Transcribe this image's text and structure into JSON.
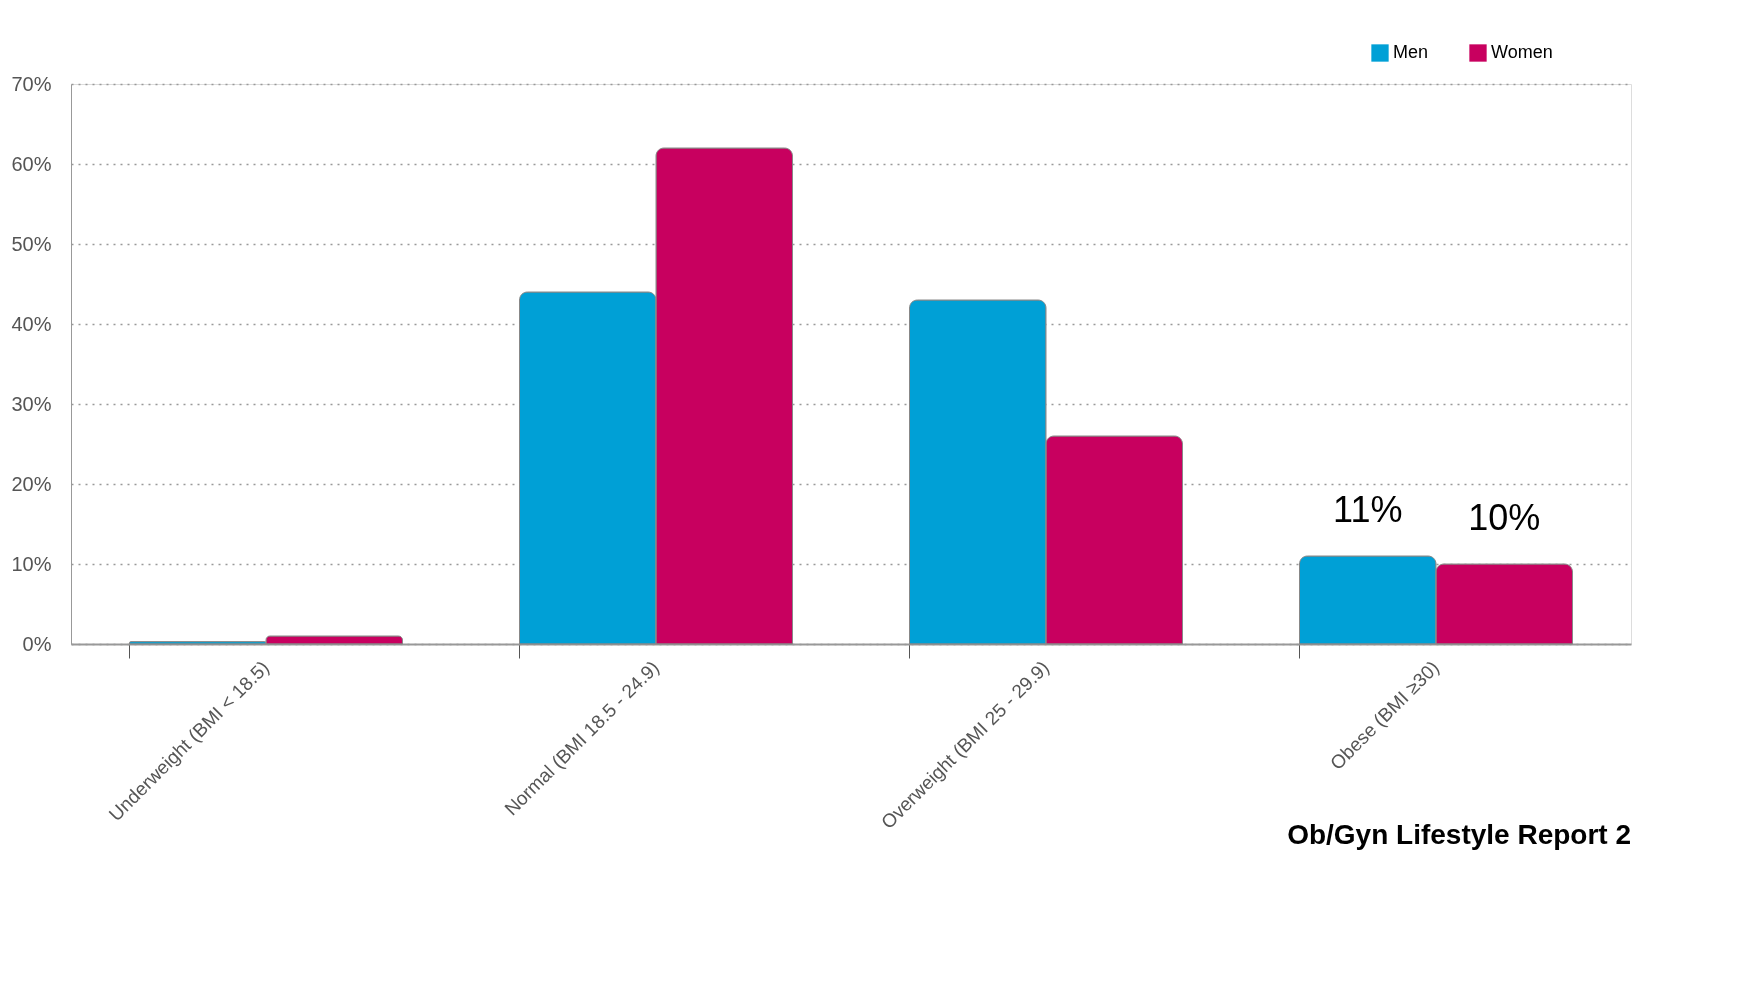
{
  "chart_data": {
    "type": "bar",
    "categories": [
      "Underweight (BMI < 18.5)",
      "Normal (BMI 18.5 - 24.9)",
      "Overweight (BMI 25 - 29.9)",
      "Obese (BMI ≥30)"
    ],
    "series": [
      {
        "name": "Men",
        "color": "#00a0d6",
        "values": [
          0.3,
          44,
          43,
          11
        ],
        "value_labels": [
          null,
          null,
          null,
          "11%"
        ]
      },
      {
        "name": "Women",
        "color": "#c8005f",
        "values": [
          1,
          62,
          26,
          10
        ],
        "value_labels": [
          null,
          null,
          null,
          "10%"
        ]
      }
    ],
    "ylim": [
      0,
      70
    ],
    "yticks": [
      {
        "value": 0,
        "label": "0%"
      },
      {
        "value": 10,
        "label": "10%"
      },
      {
        "value": 20,
        "label": "20%"
      },
      {
        "value": 30,
        "label": "30%"
      },
      {
        "value": 40,
        "label": "40%"
      },
      {
        "value": 50,
        "label": "50%"
      },
      {
        "value": 60,
        "label": "60%"
      },
      {
        "value": 70,
        "label": "70%"
      }
    ],
    "grid": "y",
    "legend": "top right",
    "annotations": [
      "Ob/Gyn Lifestyle Report 2"
    ]
  }
}
